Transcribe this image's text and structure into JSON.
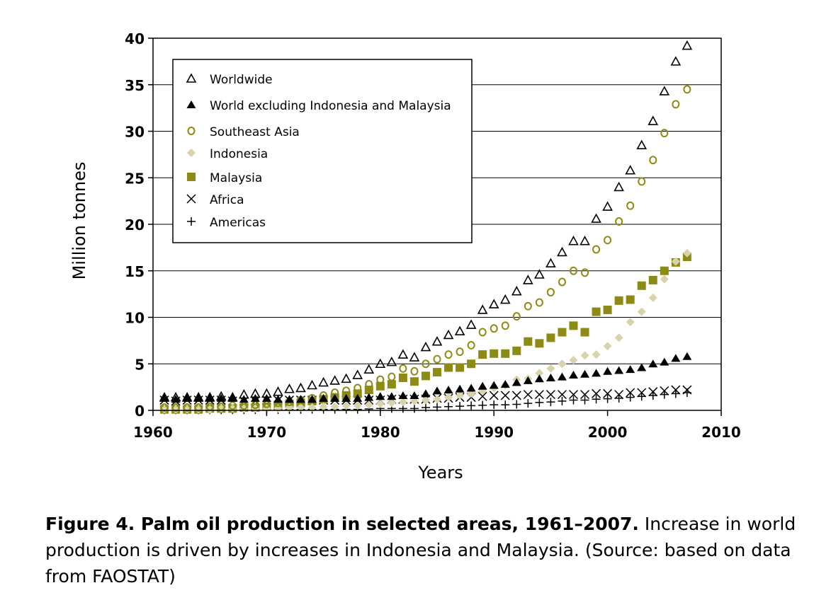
{
  "chart_data": {
    "type": "scatter",
    "xlabel": "Years",
    "ylabel": "Million tonnes",
    "xlim": [
      1960,
      2010
    ],
    "ylim": [
      0,
      40
    ],
    "xticks": [
      "1960",
      "1970",
      "1980",
      "1990",
      "2000",
      "2010"
    ],
    "yticks": [
      "0",
      "5",
      "10",
      "15",
      "20",
      "25",
      "30",
      "35",
      "40"
    ],
    "grid": "horizontal",
    "legend_position": "top-left",
    "x": [
      1961,
      1962,
      1963,
      1964,
      1965,
      1966,
      1967,
      1968,
      1969,
      1970,
      1971,
      1972,
      1973,
      1974,
      1975,
      1976,
      1977,
      1978,
      1979,
      1980,
      1981,
      1982,
      1983,
      1984,
      1985,
      1986,
      1987,
      1988,
      1989,
      1990,
      1991,
      1992,
      1993,
      1994,
      1995,
      1996,
      1997,
      1998,
      1999,
      2000,
      2001,
      2002,
      2003,
      2004,
      2005,
      2006,
      2007
    ],
    "series": [
      {
        "name": "Worldwide",
        "marker": "triangle-open",
        "color": "#000000",
        "values": [
          1.4,
          1.4,
          1.4,
          1.4,
          1.4,
          1.5,
          1.4,
          1.7,
          1.8,
          1.8,
          2.0,
          2.3,
          2.4,
          2.7,
          3.0,
          3.2,
          3.4,
          3.8,
          4.4,
          5.0,
          5.2,
          6.0,
          5.7,
          6.8,
          7.4,
          8.1,
          8.5,
          9.2,
          10.8,
          11.4,
          11.9,
          12.8,
          14.0,
          14.6,
          15.8,
          17.0,
          18.2,
          18.2,
          20.6,
          21.9,
          24.0,
          25.8,
          28.5,
          31.1,
          34.3,
          37.5,
          39.2
        ]
      },
      {
        "name": "World excluding Indonesia and Malaysia",
        "marker": "triangle-filled",
        "color": "#000000",
        "values": [
          1.3,
          1.2,
          1.3,
          1.3,
          1.3,
          1.3,
          1.3,
          1.2,
          1.3,
          1.3,
          1.2,
          1.2,
          1.2,
          1.2,
          1.3,
          1.3,
          1.3,
          1.3,
          1.4,
          1.5,
          1.5,
          1.6,
          1.6,
          1.8,
          2.1,
          2.2,
          2.3,
          2.4,
          2.6,
          2.7,
          2.8,
          3.0,
          3.2,
          3.4,
          3.5,
          3.6,
          3.8,
          3.9,
          4.0,
          4.2,
          4.3,
          4.4,
          4.6,
          5.0,
          5.2,
          5.6,
          5.8
        ]
      },
      {
        "name": "Southeast Asia",
        "marker": "circle-open",
        "color": "#8c8b13",
        "values": [
          0.3,
          0.3,
          0.3,
          0.3,
          0.4,
          0.4,
          0.5,
          0.5,
          0.6,
          0.7,
          0.8,
          0.9,
          1.1,
          1.3,
          1.6,
          1.9,
          2.1,
          2.4,
          2.8,
          3.3,
          3.6,
          4.5,
          4.2,
          5.0,
          5.5,
          6.0,
          6.3,
          7.0,
          8.4,
          8.8,
          9.1,
          10.1,
          11.2,
          11.6,
          12.7,
          13.8,
          15.0,
          14.8,
          17.3,
          18.3,
          20.3,
          22.0,
          24.6,
          26.9,
          29.8,
          32.9,
          34.5
        ]
      },
      {
        "name": "Indonesia",
        "marker": "diamond-filled",
        "color": "#d9d3ad",
        "values": [
          0.1,
          0.1,
          0.1,
          0.1,
          0.1,
          0.2,
          0.2,
          0.2,
          0.2,
          0.2,
          0.2,
          0.3,
          0.3,
          0.3,
          0.4,
          0.4,
          0.5,
          0.5,
          0.6,
          0.7,
          0.8,
          0.9,
          1.0,
          1.1,
          1.2,
          1.4,
          1.6,
          1.8,
          2.1,
          2.4,
          2.7,
          3.3,
          3.4,
          4.0,
          4.5,
          5.0,
          5.4,
          5.9,
          6.0,
          6.9,
          7.8,
          9.5,
          10.6,
          12.1,
          14.1,
          16.0,
          16.9
        ]
      },
      {
        "name": "Malaysia",
        "marker": "square-filled",
        "color": "#8c8b13",
        "values": [
          0.1,
          0.1,
          0.1,
          0.1,
          0.2,
          0.2,
          0.2,
          0.3,
          0.3,
          0.4,
          0.6,
          0.7,
          0.8,
          1.0,
          1.2,
          1.4,
          1.6,
          1.8,
          2.2,
          2.6,
          2.8,
          3.5,
          3.1,
          3.7,
          4.1,
          4.6,
          4.6,
          5.0,
          6.0,
          6.1,
          6.1,
          6.4,
          7.4,
          7.2,
          7.8,
          8.4,
          9.1,
          8.4,
          10.6,
          10.8,
          11.8,
          11.9,
          13.4,
          14.0,
          15.0,
          15.9,
          16.5
        ]
      },
      {
        "name": "Africa",
        "marker": "x",
        "color": "#000000",
        "values": [
          1.1,
          1.0,
          1.1,
          1.1,
          1.1,
          1.1,
          1.0,
          1.0,
          1.0,
          1.1,
          1.1,
          1.1,
          1.1,
          1.1,
          1.1,
          1.1,
          1.1,
          1.1,
          1.1,
          1.1,
          1.2,
          1.2,
          1.2,
          1.2,
          1.3,
          1.3,
          1.4,
          1.4,
          1.5,
          1.6,
          1.6,
          1.6,
          1.7,
          1.7,
          1.7,
          1.7,
          1.7,
          1.7,
          1.8,
          1.8,
          1.7,
          1.9,
          1.9,
          2.0,
          2.1,
          2.2,
          2.2
        ]
      },
      {
        "name": "Americas",
        "marker": "plus",
        "color": "#000000",
        "values": [
          0.05,
          0.05,
          0.05,
          0.05,
          0.06,
          0.06,
          0.06,
          0.06,
          0.07,
          0.07,
          0.08,
          0.08,
          0.09,
          0.1,
          0.1,
          0.1,
          0.1,
          0.1,
          0.15,
          0.2,
          0.2,
          0.2,
          0.2,
          0.3,
          0.35,
          0.4,
          0.45,
          0.5,
          0.55,
          0.6,
          0.6,
          0.65,
          0.75,
          0.85,
          0.9,
          1.0,
          1.1,
          1.1,
          1.2,
          1.25,
          1.3,
          1.4,
          1.5,
          1.6,
          1.7,
          1.8,
          1.9
        ]
      }
    ]
  },
  "caption": {
    "bold": "Figure 4. Palm oil production in selected areas, 1961–2007.",
    "text": " Increase in world production is driven by increases in Indonesia and Malaysia. (Source: based on data from FAOSTAT)"
  }
}
